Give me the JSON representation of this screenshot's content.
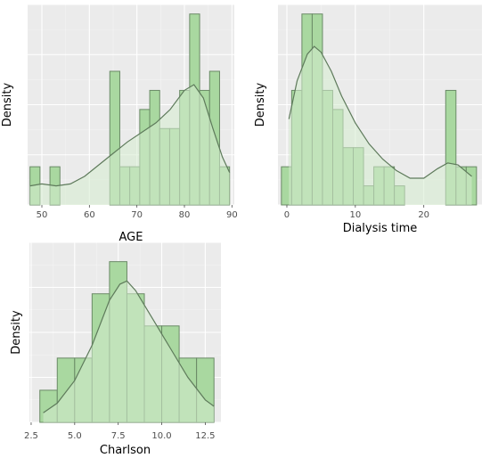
{
  "chart_data": [
    {
      "type": "bar",
      "title": "",
      "xlabel": "AGE",
      "ylabel": "Density",
      "xlim": [
        47,
        90.5
      ],
      "xticks": [
        50,
        60,
        70,
        80,
        90
      ],
      "ylim": [
        0,
        10.5
      ],
      "ytick_labels": false,
      "bins": [
        {
          "x0": 47.5,
          "x1": 49.6,
          "count": 2
        },
        {
          "x0": 49.6,
          "x1": 51.7,
          "count": 0
        },
        {
          "x0": 51.7,
          "x1": 53.8,
          "count": 2
        },
        {
          "x0": 53.8,
          "x1": 55.9,
          "count": 0
        },
        {
          "x0": 55.9,
          "x1": 58.0,
          "count": 0
        },
        {
          "x0": 58.0,
          "x1": 60.1,
          "count": 0
        },
        {
          "x0": 60.1,
          "x1": 62.2,
          "count": 0
        },
        {
          "x0": 62.2,
          "x1": 64.3,
          "count": 0
        },
        {
          "x0": 64.3,
          "x1": 66.4,
          "count": 7
        },
        {
          "x0": 66.4,
          "x1": 68.5,
          "count": 2
        },
        {
          "x0": 68.5,
          "x1": 70.6,
          "count": 2
        },
        {
          "x0": 70.6,
          "x1": 72.7,
          "count": 5
        },
        {
          "x0": 72.7,
          "x1": 74.8,
          "count": 6
        },
        {
          "x0": 74.8,
          "x1": 76.9,
          "count": 4
        },
        {
          "x0": 76.9,
          "x1": 79.0,
          "count": 4
        },
        {
          "x0": 79.0,
          "x1": 81.1,
          "count": 6
        },
        {
          "x0": 81.1,
          "x1": 83.2,
          "count": 10
        },
        {
          "x0": 83.2,
          "x1": 85.3,
          "count": 6
        },
        {
          "x0": 85.3,
          "x1": 87.4,
          "count": 7
        },
        {
          "x0": 87.4,
          "x1": 89.5,
          "count": 2
        }
      ],
      "density": [
        [
          47.5,
          1.0
        ],
        [
          50,
          1.1
        ],
        [
          53,
          1.0
        ],
        [
          56,
          1.1
        ],
        [
          59,
          1.5
        ],
        [
          62,
          2.1
        ],
        [
          65,
          2.7
        ],
        [
          68,
          3.3
        ],
        [
          71,
          3.8
        ],
        [
          74,
          4.3
        ],
        [
          77,
          5.0
        ],
        [
          80,
          6.0
        ],
        [
          82,
          6.3
        ],
        [
          84,
          5.6
        ],
        [
          86,
          4.0
        ],
        [
          88,
          2.5
        ],
        [
          89.5,
          1.7
        ]
      ]
    },
    {
      "type": "bar",
      "title": "",
      "xlabel": "Dialysis time",
      "ylabel": "Density",
      "xlim": [
        -1.3,
        28.5
      ],
      "xticks": [
        0,
        10,
        20
      ],
      "ylim": [
        0,
        10.5
      ],
      "ytick_labels": false,
      "bins": [
        {
          "x0": -0.8,
          "x1": 0.7,
          "count": 2
        },
        {
          "x0": 0.7,
          "x1": 2.2,
          "count": 6
        },
        {
          "x0": 2.2,
          "x1": 3.7,
          "count": 10
        },
        {
          "x0": 3.7,
          "x1": 5.2,
          "count": 10
        },
        {
          "x0": 5.2,
          "x1": 6.7,
          "count": 6
        },
        {
          "x0": 6.7,
          "x1": 8.2,
          "count": 5
        },
        {
          "x0": 8.2,
          "x1": 9.7,
          "count": 3
        },
        {
          "x0": 9.7,
          "x1": 11.2,
          "count": 3
        },
        {
          "x0": 11.2,
          "x1": 12.7,
          "count": 1
        },
        {
          "x0": 12.7,
          "x1": 14.2,
          "count": 2
        },
        {
          "x0": 14.2,
          "x1": 15.7,
          "count": 2
        },
        {
          "x0": 15.7,
          "x1": 17.2,
          "count": 1
        },
        {
          "x0": 17.2,
          "x1": 18.7,
          "count": 0
        },
        {
          "x0": 18.7,
          "x1": 20.2,
          "count": 0
        },
        {
          "x0": 20.2,
          "x1": 21.7,
          "count": 0
        },
        {
          "x0": 21.7,
          "x1": 23.2,
          "count": 0
        },
        {
          "x0": 23.2,
          "x1": 24.7,
          "count": 6
        },
        {
          "x0": 24.7,
          "x1": 26.2,
          "count": 2
        },
        {
          "x0": 26.2,
          "x1": 27.7,
          "count": 2
        }
      ],
      "density": [
        [
          0.3,
          4.5
        ],
        [
          1.5,
          6.5
        ],
        [
          3,
          7.9
        ],
        [
          4,
          8.3
        ],
        [
          5,
          8.0
        ],
        [
          6.5,
          7.0
        ],
        [
          8,
          5.7
        ],
        [
          10,
          4.3
        ],
        [
          12,
          3.2
        ],
        [
          14,
          2.4
        ],
        [
          16,
          1.8
        ],
        [
          18,
          1.4
        ],
        [
          20,
          1.4
        ],
        [
          22,
          1.9
        ],
        [
          23.5,
          2.2
        ],
        [
          25,
          2.1
        ],
        [
          27,
          1.5
        ]
      ]
    },
    {
      "type": "bar",
      "title": "",
      "xlabel": "Charlson",
      "ylabel": "Density",
      "xlim": [
        2.4,
        13.4
      ],
      "xticks": [
        2.5,
        5.0,
        7.5,
        10.0,
        12.5
      ],
      "xtick_labels": [
        "2.5",
        "5.0",
        "7.5",
        "10.0",
        "12.5"
      ],
      "ylim": [
        0,
        5.6
      ],
      "ytick_labels": false,
      "bins": [
        {
          "x0": 3.0,
          "x1": 4.0,
          "count": 1
        },
        {
          "x0": 4.0,
          "x1": 5.0,
          "count": 2
        },
        {
          "x0": 5.0,
          "x1": 6.0,
          "count": 2
        },
        {
          "x0": 6.0,
          "x1": 7.0,
          "count": 4
        },
        {
          "x0": 7.0,
          "x1": 8.0,
          "count": 5
        },
        {
          "x0": 8.0,
          "x1": 9.0,
          "count": 4
        },
        {
          "x0": 9.0,
          "x1": 10.0,
          "count": 3
        },
        {
          "x0": 10.0,
          "x1": 11.0,
          "count": 3
        },
        {
          "x0": 11.0,
          "x1": 12.0,
          "count": 2
        },
        {
          "x0": 12.0,
          "x1": 13.0,
          "count": 2
        }
      ],
      "density": [
        [
          3.2,
          0.3
        ],
        [
          4,
          0.6
        ],
        [
          5,
          1.3
        ],
        [
          6,
          2.4
        ],
        [
          7,
          3.8
        ],
        [
          7.6,
          4.3
        ],
        [
          8,
          4.4
        ],
        [
          8.5,
          4.1
        ],
        [
          9.5,
          3.2
        ],
        [
          10.5,
          2.3
        ],
        [
          11.5,
          1.4
        ],
        [
          12.5,
          0.7
        ],
        [
          13,
          0.5
        ]
      ]
    }
  ]
}
